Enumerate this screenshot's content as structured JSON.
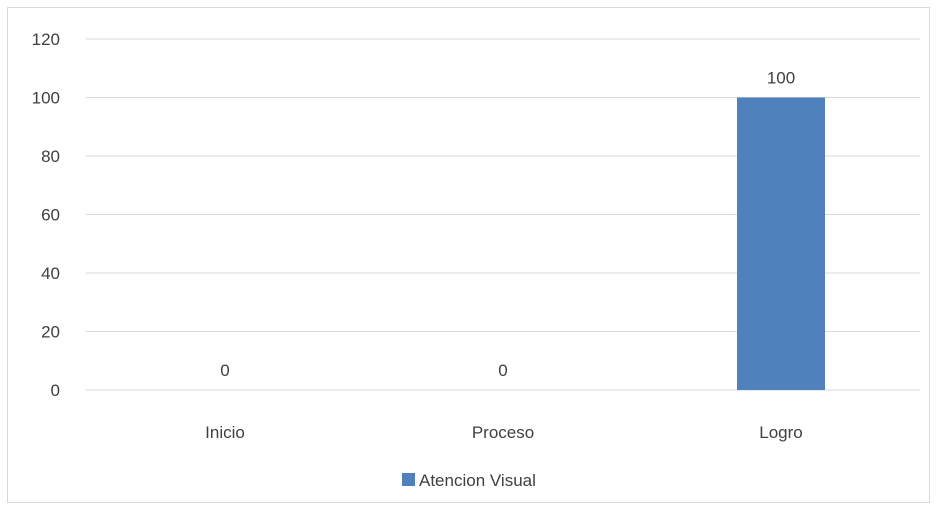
{
  "chart_data": {
    "type": "bar",
    "categories": [
      "Inicio",
      "Proceso",
      "Logro"
    ],
    "series": [
      {
        "name": "Atencion Visual",
        "values": [
          0,
          0,
          100
        ],
        "color": "#4f81bd"
      }
    ],
    "data_labels": [
      "0",
      "0",
      "100"
    ],
    "yticks": [
      "0",
      "20",
      "40",
      "60",
      "80",
      "100",
      "120"
    ],
    "ylim": [
      0,
      120
    ],
    "grid": true,
    "legend_position": "bottom"
  }
}
